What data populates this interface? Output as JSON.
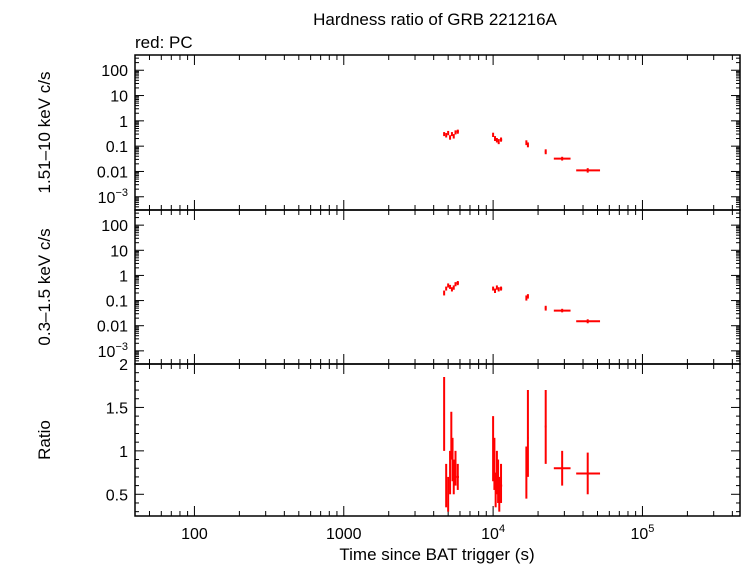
{
  "title": "Hardness ratio of GRB 221216A",
  "subtitle": "red: PC",
  "chart_data": {
    "type": "scatter",
    "title": "Hardness ratio of GRB 221216A",
    "legend_note": "red: PC",
    "xlabel": "Time since BAT trigger (s)",
    "xscale": "log",
    "xlim": [
      40,
      450000
    ],
    "x_tick_labels": [
      "100",
      "1000",
      "10⁴",
      "10⁵"
    ],
    "x_tick_values": [
      100,
      1000,
      10000,
      100000
    ],
    "color": "#ff0000",
    "grid": false,
    "panels": [
      {
        "ylabel": "1.51–10 keV c/s",
        "yscale": "log",
        "ylim": [
          0.0003,
          400
        ],
        "y_tick_labels": [
          "100",
          "10",
          "1",
          "0.1",
          "0.01",
          "10⁻³"
        ],
        "y_tick_values": [
          100,
          10,
          1,
          0.1,
          0.01,
          0.001
        ],
        "points": [
          {
            "x": 4700,
            "xlo": 4650,
            "xhi": 4750,
            "y": 0.3,
            "ylo": 0.25,
            "yhi": 0.36
          },
          {
            "x": 4850,
            "xlo": 4800,
            "xhi": 4900,
            "y": 0.27,
            "ylo": 0.22,
            "yhi": 0.33
          },
          {
            "x": 5000,
            "xlo": 4950,
            "xhi": 5050,
            "y": 0.33,
            "ylo": 0.27,
            "yhi": 0.4
          },
          {
            "x": 5150,
            "xlo": 5100,
            "xhi": 5200,
            "y": 0.22,
            "ylo": 0.18,
            "yhi": 0.27
          },
          {
            "x": 5300,
            "xlo": 5250,
            "xhi": 5350,
            "y": 0.3,
            "ylo": 0.25,
            "yhi": 0.36
          },
          {
            "x": 5450,
            "xlo": 5400,
            "xhi": 5500,
            "y": 0.25,
            "ylo": 0.2,
            "yhi": 0.3
          },
          {
            "x": 5600,
            "xlo": 5550,
            "xhi": 5650,
            "y": 0.35,
            "ylo": 0.29,
            "yhi": 0.42
          },
          {
            "x": 5800,
            "xlo": 5700,
            "xhi": 5900,
            "y": 0.38,
            "ylo": 0.31,
            "yhi": 0.45
          },
          {
            "x": 10000,
            "xlo": 9900,
            "xhi": 10100,
            "y": 0.28,
            "ylo": 0.23,
            "yhi": 0.34
          },
          {
            "x": 10300,
            "xlo": 10200,
            "xhi": 10400,
            "y": 0.2,
            "ylo": 0.16,
            "yhi": 0.25
          },
          {
            "x": 10600,
            "xlo": 10500,
            "xhi": 10700,
            "y": 0.17,
            "ylo": 0.14,
            "yhi": 0.21
          },
          {
            "x": 10900,
            "xlo": 10800,
            "xhi": 11000,
            "y": 0.15,
            "ylo": 0.12,
            "yhi": 0.19
          },
          {
            "x": 11300,
            "xlo": 11100,
            "xhi": 11500,
            "y": 0.18,
            "ylo": 0.15,
            "yhi": 0.22
          },
          {
            "x": 16700,
            "xlo": 16500,
            "xhi": 16900,
            "y": 0.14,
            "ylo": 0.11,
            "yhi": 0.17
          },
          {
            "x": 17100,
            "xlo": 16900,
            "xhi": 17300,
            "y": 0.11,
            "ylo": 0.09,
            "yhi": 0.14
          },
          {
            "x": 22500,
            "xlo": 22200,
            "xhi": 22800,
            "y": 0.06,
            "ylo": 0.048,
            "yhi": 0.075
          },
          {
            "x": 29000,
            "xlo": 25500,
            "xhi": 33000,
            "y": 0.032,
            "ylo": 0.027,
            "yhi": 0.038
          },
          {
            "x": 43000,
            "xlo": 36000,
            "xhi": 52000,
            "y": 0.011,
            "ylo": 0.009,
            "yhi": 0.0135
          }
        ]
      },
      {
        "ylabel": "0.3–1.5 keV c/s",
        "yscale": "log",
        "ylim": [
          0.0003,
          400
        ],
        "y_tick_labels": [
          "100",
          "10",
          "1",
          "0.1",
          "0.01",
          "10⁻³"
        ],
        "y_tick_values": [
          100,
          10,
          1,
          0.1,
          0.01,
          0.001
        ],
        "points": [
          {
            "x": 4700,
            "xlo": 4650,
            "xhi": 4750,
            "y": 0.2,
            "ylo": 0.16,
            "yhi": 0.25
          },
          {
            "x": 4850,
            "xlo": 4800,
            "xhi": 4900,
            "y": 0.3,
            "ylo": 0.25,
            "yhi": 0.36
          },
          {
            "x": 5000,
            "xlo": 4950,
            "xhi": 5050,
            "y": 0.4,
            "ylo": 0.33,
            "yhi": 0.48
          },
          {
            "x": 5150,
            "xlo": 5100,
            "xhi": 5200,
            "y": 0.35,
            "ylo": 0.29,
            "yhi": 0.42
          },
          {
            "x": 5300,
            "xlo": 5250,
            "xhi": 5350,
            "y": 0.28,
            "ylo": 0.23,
            "yhi": 0.34
          },
          {
            "x": 5450,
            "xlo": 5400,
            "xhi": 5500,
            "y": 0.33,
            "ylo": 0.27,
            "yhi": 0.4
          },
          {
            "x": 5600,
            "xlo": 5550,
            "xhi": 5650,
            "y": 0.45,
            "ylo": 0.37,
            "yhi": 0.54
          },
          {
            "x": 5800,
            "xlo": 5700,
            "xhi": 5900,
            "y": 0.5,
            "ylo": 0.41,
            "yhi": 0.6
          },
          {
            "x": 10000,
            "xlo": 9900,
            "xhi": 10100,
            "y": 0.3,
            "ylo": 0.25,
            "yhi": 0.36
          },
          {
            "x": 10300,
            "xlo": 10200,
            "xhi": 10400,
            "y": 0.25,
            "ylo": 0.2,
            "yhi": 0.3
          },
          {
            "x": 10600,
            "xlo": 10500,
            "xhi": 10700,
            "y": 0.33,
            "ylo": 0.27,
            "yhi": 0.4
          },
          {
            "x": 10900,
            "xlo": 10800,
            "xhi": 11000,
            "y": 0.28,
            "ylo": 0.23,
            "yhi": 0.34
          },
          {
            "x": 11300,
            "xlo": 11100,
            "xhi": 11500,
            "y": 0.3,
            "ylo": 0.25,
            "yhi": 0.36
          },
          {
            "x": 16700,
            "xlo": 16500,
            "xhi": 16900,
            "y": 0.13,
            "ylo": 0.1,
            "yhi": 0.16
          },
          {
            "x": 17100,
            "xlo": 16900,
            "xhi": 17300,
            "y": 0.15,
            "ylo": 0.12,
            "yhi": 0.18
          },
          {
            "x": 22500,
            "xlo": 22200,
            "xhi": 22800,
            "y": 0.05,
            "ylo": 0.04,
            "yhi": 0.062
          },
          {
            "x": 29000,
            "xlo": 25500,
            "xhi": 33000,
            "y": 0.04,
            "ylo": 0.034,
            "yhi": 0.047
          },
          {
            "x": 43000,
            "xlo": 36000,
            "xhi": 52000,
            "y": 0.015,
            "ylo": 0.0125,
            "yhi": 0.018
          }
        ]
      },
      {
        "ylabel": "Ratio",
        "yscale": "linear",
        "ylim": [
          0.25,
          2
        ],
        "y_tick_labels": [
          "2",
          "1.5",
          "1",
          "0.5"
        ],
        "y_tick_values": [
          2,
          1.5,
          1,
          0.5
        ],
        "points": [
          {
            "x": 4700,
            "xlo": 4650,
            "xhi": 4750,
            "y": 1.42,
            "ylo": 1.0,
            "yhi": 1.85
          },
          {
            "x": 4850,
            "xlo": 4800,
            "xhi": 4900,
            "y": 0.6,
            "ylo": 0.35,
            "yhi": 0.85
          },
          {
            "x": 5000,
            "xlo": 4950,
            "xhi": 5050,
            "y": 0.5,
            "ylo": 0.3,
            "yhi": 0.7
          },
          {
            "x": 5150,
            "xlo": 5100,
            "xhi": 5200,
            "y": 0.75,
            "ylo": 0.5,
            "yhi": 1.0
          },
          {
            "x": 5250,
            "xlo": 5200,
            "xhi": 5300,
            "y": 1.2,
            "ylo": 0.9,
            "yhi": 1.45
          },
          {
            "x": 5350,
            "xlo": 5300,
            "xhi": 5400,
            "y": 0.9,
            "ylo": 0.65,
            "yhi": 1.15
          },
          {
            "x": 5450,
            "xlo": 5400,
            "xhi": 5500,
            "y": 0.7,
            "ylo": 0.5,
            "yhi": 0.9
          },
          {
            "x": 5600,
            "xlo": 5550,
            "xhi": 5650,
            "y": 0.8,
            "ylo": 0.6,
            "yhi": 1.0
          },
          {
            "x": 5800,
            "xlo": 5700,
            "xhi": 5900,
            "y": 0.7,
            "ylo": 0.55,
            "yhi": 0.85
          },
          {
            "x": 10000,
            "xlo": 9900,
            "xhi": 10100,
            "y": 1.0,
            "ylo": 0.65,
            "yhi": 1.4
          },
          {
            "x": 10200,
            "xlo": 10150,
            "xhi": 10250,
            "y": 0.85,
            "ylo": 0.55,
            "yhi": 1.15
          },
          {
            "x": 10400,
            "xlo": 10300,
            "xhi": 10500,
            "y": 0.55,
            "ylo": 0.35,
            "yhi": 0.75
          },
          {
            "x": 10600,
            "xlo": 10500,
            "xhi": 10700,
            "y": 0.75,
            "ylo": 0.5,
            "yhi": 1.0
          },
          {
            "x": 10800,
            "xlo": 10700,
            "xhi": 10900,
            "y": 0.65,
            "ylo": 0.4,
            "yhi": 0.9
          },
          {
            "x": 11000,
            "xlo": 10900,
            "xhi": 11100,
            "y": 0.5,
            "ylo": 0.3,
            "yhi": 0.7
          },
          {
            "x": 11300,
            "xlo": 11100,
            "xhi": 11500,
            "y": 0.6,
            "ylo": 0.4,
            "yhi": 0.85
          },
          {
            "x": 16700,
            "xlo": 16500,
            "xhi": 16900,
            "y": 0.75,
            "ylo": 0.45,
            "yhi": 1.05
          },
          {
            "x": 17100,
            "xlo": 16900,
            "xhi": 17300,
            "y": 1.15,
            "ylo": 0.7,
            "yhi": 1.7
          },
          {
            "x": 22500,
            "xlo": 22200,
            "xhi": 22800,
            "y": 1.28,
            "ylo": 0.85,
            "yhi": 1.7
          },
          {
            "x": 29000,
            "xlo": 25500,
            "xhi": 33000,
            "y": 0.8,
            "ylo": 0.6,
            "yhi": 1.0
          },
          {
            "x": 43000,
            "xlo": 36000,
            "xhi": 52000,
            "y": 0.74,
            "ylo": 0.5,
            "yhi": 0.98
          }
        ]
      }
    ]
  }
}
